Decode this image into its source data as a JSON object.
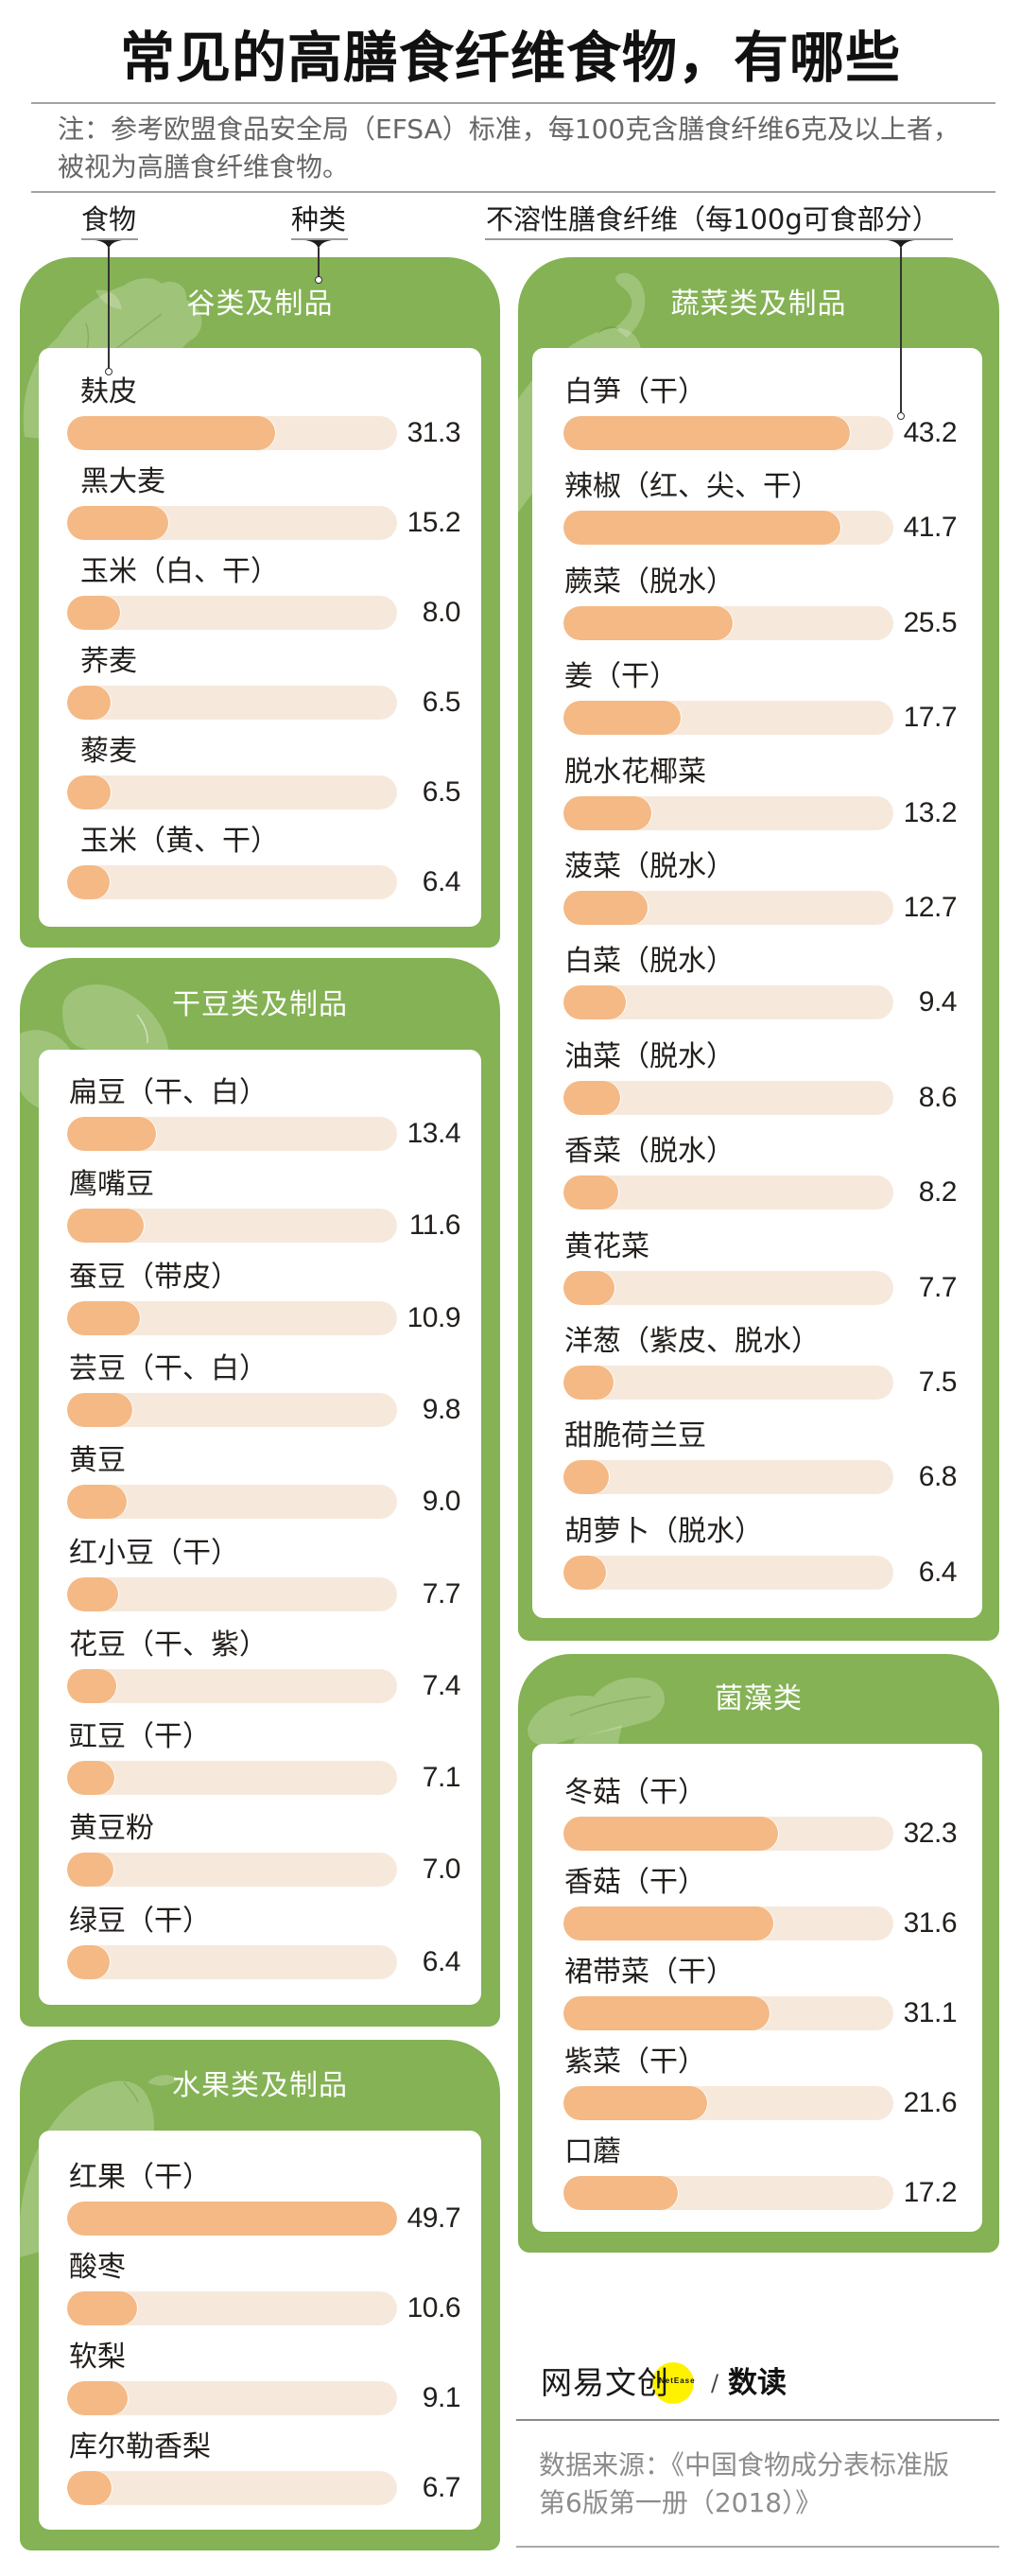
{
  "title": "常见的高膳食纤维食物，有哪些",
  "note": {
    "line1": "注：参考欧盟食品安全局（EFSA）标准，每100克含膳食纤维6克及以上者，",
    "line2": "被视为高膳食纤维食物。"
  },
  "legend": {
    "food": "食物",
    "category": "种类",
    "value": "不溶性膳食纤维（每100g可食部分）"
  },
  "colors": {
    "card_green": "#84b254",
    "bar_fill": "#f4b985",
    "bar_track": "#f6e9dc",
    "logo_yellow": "#fff200"
  },
  "scale_max": 49.7,
  "groups": [
    {
      "title": "谷类及制品",
      "icon": "cabbage-icon",
      "items": [
        {
          "name": "麸皮",
          "value": "31.3"
        },
        {
          "name": "黑大麦",
          "value": "15.2"
        },
        {
          "name": "玉米（白、干）",
          "value": "8.0"
        },
        {
          "name": "荞麦",
          "value": "6.5"
        },
        {
          "name": "藜麦",
          "value": "6.5"
        },
        {
          "name": "玉米（黄、干）",
          "value": "6.4"
        }
      ]
    },
    {
      "title": "干豆类及制品",
      "icon": "bean-icon",
      "items": [
        {
          "name": "扁豆（干、白）",
          "value": "13.4"
        },
        {
          "name": "鹰嘴豆",
          "value": "11.6"
        },
        {
          "name": "蚕豆（带皮）",
          "value": "10.9"
        },
        {
          "name": "芸豆（干、白）",
          "value": "9.8"
        },
        {
          "name": "黄豆",
          "value": "9.0"
        },
        {
          "name": "红小豆（干）",
          "value": "7.7"
        },
        {
          "name": "花豆（干、紫）",
          "value": "7.4"
        },
        {
          "name": "豇豆（干）",
          "value": "7.1"
        },
        {
          "name": "黄豆粉",
          "value": "7.0"
        },
        {
          "name": "绿豆（干）",
          "value": "6.4"
        }
      ]
    },
    {
      "title": "水果类及制品",
      "icon": "pear-icon",
      "items": [
        {
          "name": "红果（干）",
          "value": "49.7"
        },
        {
          "name": "酸枣",
          "value": "10.6"
        },
        {
          "name": "软梨",
          "value": "9.1"
        },
        {
          "name": "库尔勒香梨",
          "value": "6.7"
        }
      ]
    },
    {
      "title": "蔬菜类及制品",
      "icon": "pepper-icon",
      "items": [
        {
          "name": "白笋（干）",
          "value": "43.2"
        },
        {
          "name": "辣椒（红、尖、干）",
          "value": "41.7"
        },
        {
          "name": "蕨菜（脱水）",
          "value": "25.5"
        },
        {
          "name": "姜（干）",
          "value": "17.7"
        },
        {
          "name": "脱水花椰菜",
          "value": "13.2"
        },
        {
          "name": "菠菜（脱水）",
          "value": "12.7"
        },
        {
          "name": "白菜（脱水）",
          "value": "9.4"
        },
        {
          "name": "油菜（脱水）",
          "value": "8.6"
        },
        {
          "name": "香菜（脱水）",
          "value": "8.2"
        },
        {
          "name": "黄花菜",
          "value": "7.7"
        },
        {
          "name": "洋葱（紫皮、脱水）",
          "value": "7.5"
        },
        {
          "name": "甜脆荷兰豆",
          "value": "6.8"
        },
        {
          "name": "胡萝卜（脱水）",
          "value": "6.4"
        }
      ]
    },
    {
      "title": "菌藻类",
      "icon": "mushroom-icon",
      "items": [
        {
          "name": "冬菇（干）",
          "value": "32.3"
        },
        {
          "name": "香菇（干）",
          "value": "31.6"
        },
        {
          "name": "裙带菜（干）",
          "value": "31.1"
        },
        {
          "name": "紫菜（干）",
          "value": "21.6"
        },
        {
          "name": "口蘑",
          "value": "17.2"
        }
      ]
    }
  ],
  "footer": {
    "brand": "网易文创",
    "brand_en": "NetEase",
    "separator": "/",
    "column": "数读",
    "source_line1": "数据来源：《中国食物成分表标准版",
    "source_line2": "第6版第一册（2018）》"
  },
  "chart_data": [
    {
      "type": "bar",
      "orientation": "horizontal",
      "title": "谷类及制品",
      "xlabel": "不溶性膳食纤维（每100g可食部分）",
      "ylabel": "食物",
      "xlim": [
        0,
        49.7
      ],
      "grid": false,
      "categories": [
        "麸皮",
        "黑大麦",
        "玉米（白、干）",
        "荞麦",
        "藜麦",
        "玉米（黄、干）"
      ],
      "values": [
        31.3,
        15.2,
        8.0,
        6.5,
        6.5,
        6.4
      ]
    },
    {
      "type": "bar",
      "orientation": "horizontal",
      "title": "干豆类及制品",
      "xlabel": "不溶性膳食纤维（每100g可食部分）",
      "ylabel": "食物",
      "xlim": [
        0,
        49.7
      ],
      "grid": false,
      "categories": [
        "扁豆（干、白）",
        "鹰嘴豆",
        "蚕豆（带皮）",
        "芸豆（干、白）",
        "黄豆",
        "红小豆（干）",
        "花豆（干、紫）",
        "豇豆（干）",
        "黄豆粉",
        "绿豆（干）"
      ],
      "values": [
        13.4,
        11.6,
        10.9,
        9.8,
        9.0,
        7.7,
        7.4,
        7.1,
        7.0,
        6.4
      ]
    },
    {
      "type": "bar",
      "orientation": "horizontal",
      "title": "水果类及制品",
      "xlabel": "不溶性膳食纤维（每100g可食部分）",
      "ylabel": "食物",
      "xlim": [
        0,
        49.7
      ],
      "grid": false,
      "categories": [
        "红果（干）",
        "酸枣",
        "软梨",
        "库尔勒香梨"
      ],
      "values": [
        49.7,
        10.6,
        9.1,
        6.7
      ]
    },
    {
      "type": "bar",
      "orientation": "horizontal",
      "title": "蔬菜类及制品",
      "xlabel": "不溶性膳食纤维（每100g可食部分）",
      "ylabel": "食物",
      "xlim": [
        0,
        49.7
      ],
      "grid": false,
      "categories": [
        "白笋（干）",
        "辣椒（红、尖、干）",
        "蕨菜（脱水）",
        "姜（干）",
        "脱水花椰菜",
        "菠菜（脱水）",
        "白菜（脱水）",
        "油菜（脱水）",
        "香菜（脱水）",
        "黄花菜",
        "洋葱（紫皮、脱水）",
        "甜脆荷兰豆",
        "胡萝卜（脱水）"
      ],
      "values": [
        43.2,
        41.7,
        25.5,
        17.7,
        13.2,
        12.7,
        9.4,
        8.6,
        8.2,
        7.7,
        7.5,
        6.8,
        6.4
      ]
    },
    {
      "type": "bar",
      "orientation": "horizontal",
      "title": "菌藻类",
      "xlabel": "不溶性膳食纤维（每100g可食部分）",
      "ylabel": "食物",
      "xlim": [
        0,
        49.7
      ],
      "grid": false,
      "categories": [
        "冬菇（干）",
        "香菇（干）",
        "裙带菜（干）",
        "紫菜（干）",
        "口蘑"
      ],
      "values": [
        32.3,
        31.6,
        31.1,
        21.6,
        17.2
      ]
    }
  ]
}
